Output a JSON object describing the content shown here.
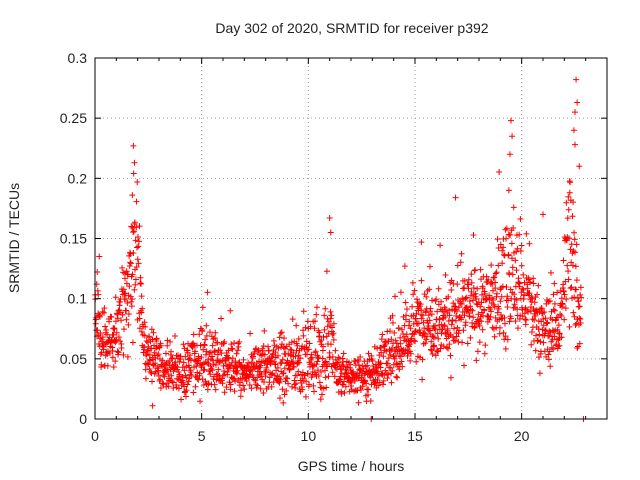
{
  "chart_data": {
    "type": "scatter",
    "title": "Day 302 of 2020, SRMTID for receiver p392",
    "xlabel": "GPS time / hours",
    "ylabel": "SRMTID / TECUs",
    "xlim": [
      0,
      24
    ],
    "ylim": [
      0,
      0.3
    ],
    "x_ticks": [
      0,
      5,
      10,
      15,
      20
    ],
    "x_tick_labels": [
      "0",
      "5",
      "10",
      "15",
      "20"
    ],
    "y_ticks": [
      0,
      0.05,
      0.1,
      0.15,
      0.2,
      0.25,
      0.3
    ],
    "y_tick_labels": [
      "0",
      "0.05",
      "0.1",
      "0.15",
      "0.2",
      "0.25",
      "0.3"
    ],
    "grid": true,
    "marker": "+",
    "color": "#ff0000",
    "trend": [
      {
        "x": 0.0,
        "y": 0.09,
        "spread": 0.035
      },
      {
        "x": 0.5,
        "y": 0.06,
        "spread": 0.02
      },
      {
        "x": 1.0,
        "y": 0.07,
        "spread": 0.025
      },
      {
        "x": 1.5,
        "y": 0.1,
        "spread": 0.04
      },
      {
        "x": 1.9,
        "y": 0.14,
        "spread": 0.06
      },
      {
        "x": 2.3,
        "y": 0.06,
        "spread": 0.02
      },
      {
        "x": 3.0,
        "y": 0.045,
        "spread": 0.02
      },
      {
        "x": 4.0,
        "y": 0.04,
        "spread": 0.018
      },
      {
        "x": 5.0,
        "y": 0.05,
        "spread": 0.025
      },
      {
        "x": 6.0,
        "y": 0.045,
        "spread": 0.02
      },
      {
        "x": 7.0,
        "y": 0.035,
        "spread": 0.015
      },
      {
        "x": 8.0,
        "y": 0.045,
        "spread": 0.022
      },
      {
        "x": 9.0,
        "y": 0.045,
        "spread": 0.025
      },
      {
        "x": 10.0,
        "y": 0.05,
        "spread": 0.025
      },
      {
        "x": 11.0,
        "y": 0.06,
        "spread": 0.04
      },
      {
        "x": 11.5,
        "y": 0.035,
        "spread": 0.015
      },
      {
        "x": 12.5,
        "y": 0.035,
        "spread": 0.015
      },
      {
        "x": 13.5,
        "y": 0.045,
        "spread": 0.02
      },
      {
        "x": 14.5,
        "y": 0.065,
        "spread": 0.025
      },
      {
        "x": 15.5,
        "y": 0.085,
        "spread": 0.03
      },
      {
        "x": 16.5,
        "y": 0.08,
        "spread": 0.03
      },
      {
        "x": 17.5,
        "y": 0.09,
        "spread": 0.03
      },
      {
        "x": 18.5,
        "y": 0.095,
        "spread": 0.03
      },
      {
        "x": 19.5,
        "y": 0.12,
        "spread": 0.05
      },
      {
        "x": 20.2,
        "y": 0.1,
        "spread": 0.035
      },
      {
        "x": 21.0,
        "y": 0.07,
        "spread": 0.025
      },
      {
        "x": 21.8,
        "y": 0.08,
        "spread": 0.03
      },
      {
        "x": 22.3,
        "y": 0.16,
        "spread": 0.07
      },
      {
        "x": 22.7,
        "y": 0.09,
        "spread": 0.03
      }
    ],
    "peaks": [
      {
        "x": 1.8,
        "y": 0.227
      },
      {
        "x": 1.85,
        "y": 0.213
      },
      {
        "x": 1.75,
        "y": 0.186
      },
      {
        "x": 1.7,
        "y": 0.16
      },
      {
        "x": 11.0,
        "y": 0.167
      },
      {
        "x": 11.05,
        "y": 0.155
      },
      {
        "x": 15.3,
        "y": 0.147
      },
      {
        "x": 16.9,
        "y": 0.184
      },
      {
        "x": 19.5,
        "y": 0.248
      },
      {
        "x": 19.55,
        "y": 0.235
      },
      {
        "x": 19.45,
        "y": 0.22
      },
      {
        "x": 19.4,
        "y": 0.19
      },
      {
        "x": 21.0,
        "y": 0.17
      },
      {
        "x": 22.55,
        "y": 0.282
      },
      {
        "x": 22.6,
        "y": 0.263
      },
      {
        "x": 22.5,
        "y": 0.255
      },
      {
        "x": 22.45,
        "y": 0.24
      },
      {
        "x": 22.5,
        "y": 0.228
      },
      {
        "x": 22.7,
        "y": 0.21
      },
      {
        "x": 0.2,
        "y": 0.135
      },
      {
        "x": 2.7,
        "y": 0.011
      },
      {
        "x": 12.95,
        "y": 0.0
      },
      {
        "x": 22.9,
        "y": 0.0
      }
    ],
    "n_points": 1800
  }
}
